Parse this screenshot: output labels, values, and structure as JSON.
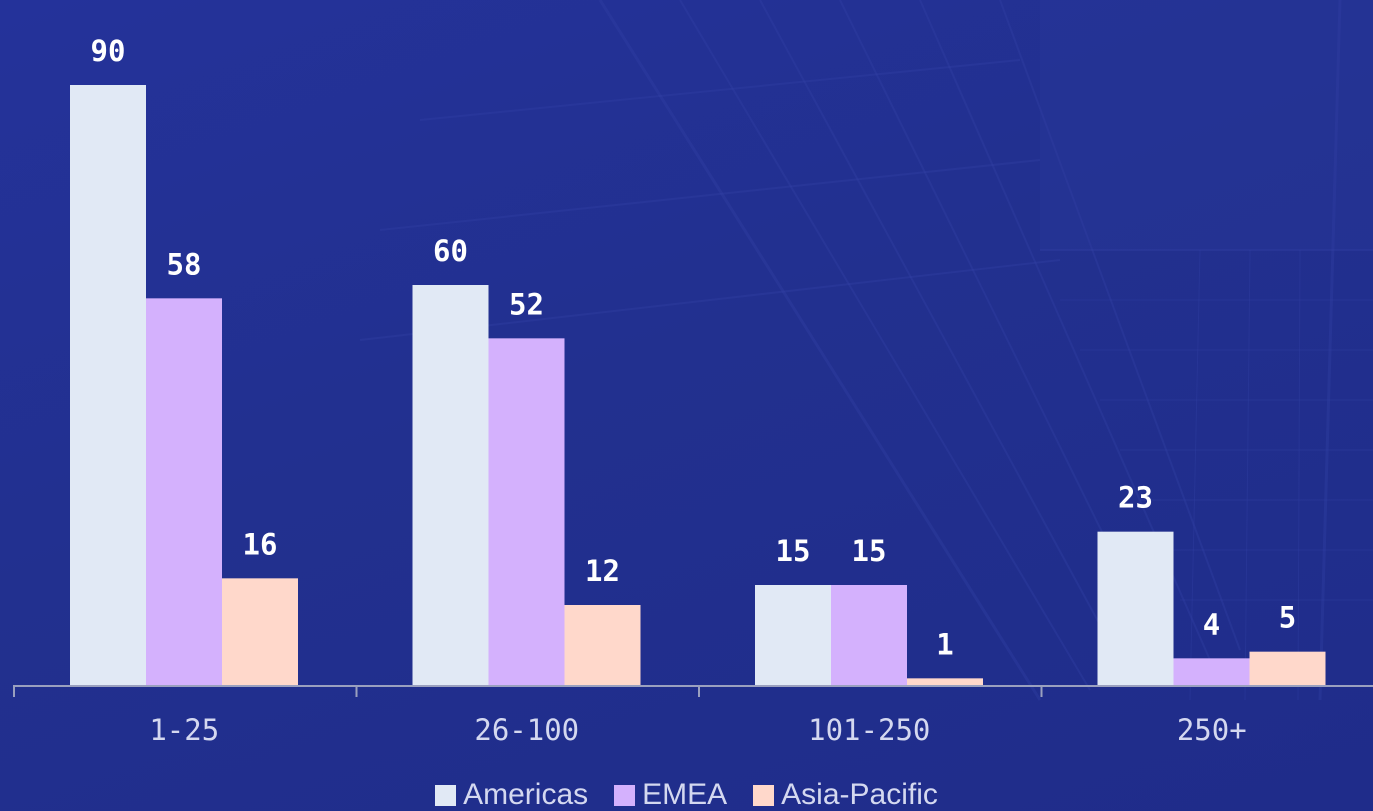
{
  "colors": {
    "background": "#22308f",
    "axis": "#9aa0bf",
    "tick_text": "#d4d8f0",
    "label_text": "#ffffff"
  },
  "chart_data": {
    "type": "bar",
    "categories": [
      "1-25",
      "26-100",
      "101-250",
      "250+"
    ],
    "series": [
      {
        "name": "Americas",
        "color": "#e1e9f5",
        "values": [
          90,
          60,
          15,
          23
        ]
      },
      {
        "name": "EMEA",
        "color": "#d4b1fd",
        "values": [
          58,
          52,
          15,
          4
        ]
      },
      {
        "name": "Asia-Pacific",
        "color": "#ffd8cb",
        "values": [
          16,
          12,
          1,
          5
        ]
      }
    ],
    "title": "",
    "xlabel": "",
    "ylabel": "",
    "ylim": [
      0,
      90
    ],
    "grid": false,
    "legend_position": "bottom-center",
    "data_labels": true
  }
}
